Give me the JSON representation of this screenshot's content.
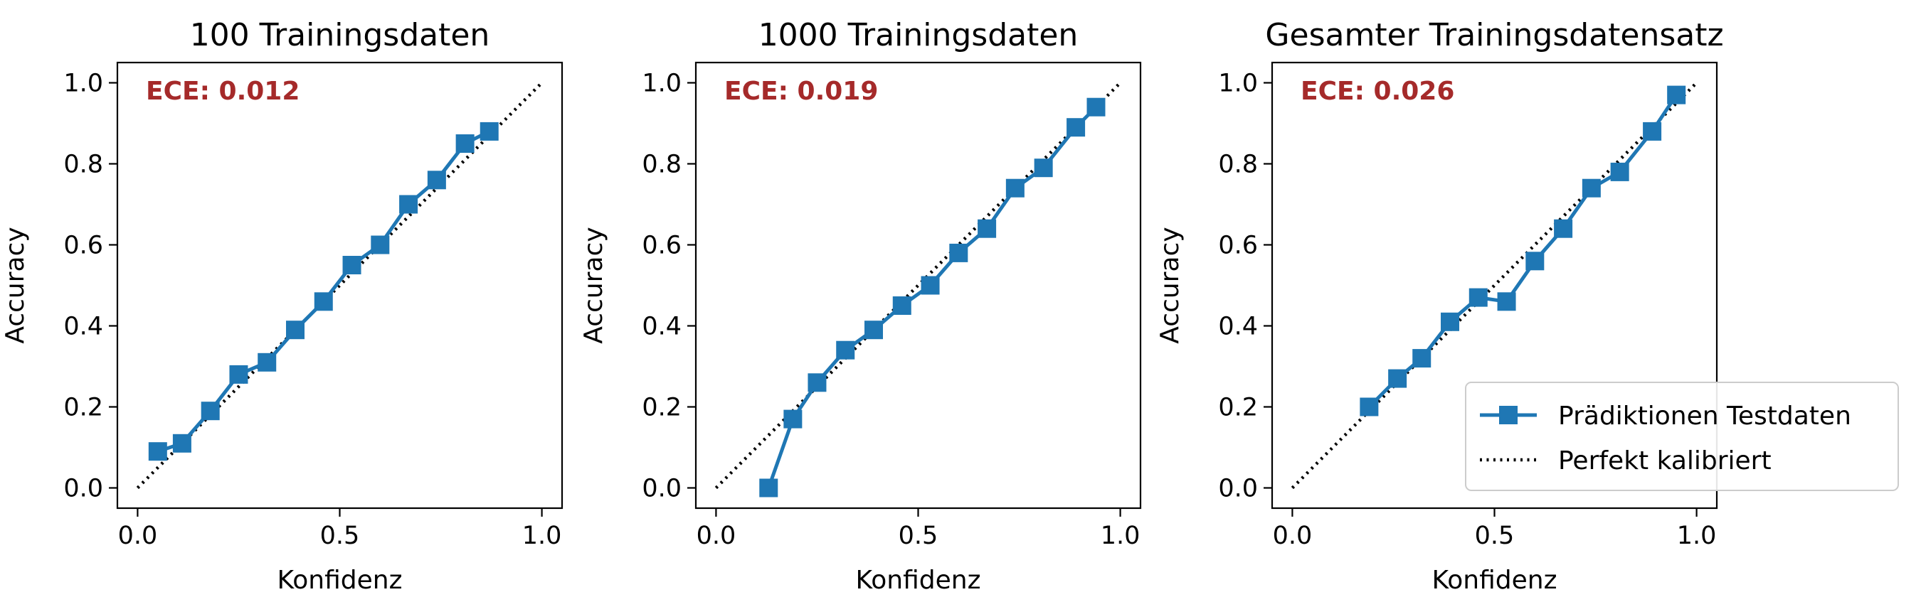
{
  "colors": {
    "series": "#1f77b4",
    "ece_text": "#a52a2a",
    "perfect_line": "#000000",
    "axes": "#000000",
    "legend_border": "#cccccc"
  },
  "legend": {
    "placement": "lower-right of third panel",
    "items": [
      "Prädiktionen Testdaten",
      "Perfekt kalibriert"
    ]
  },
  "chart_data": [
    {
      "type": "line",
      "title": "100 Trainingsdaten",
      "xlabel": "Konfidenz",
      "ylabel": "Accuracy",
      "xlim": [
        -0.05,
        1.05
      ],
      "ylim": [
        -0.05,
        1.05
      ],
      "xticks": [
        "0.0",
        "0.5",
        "1.0"
      ],
      "yticks": [
        "0.0",
        "0.2",
        "0.4",
        "0.6",
        "0.8",
        "1.0"
      ],
      "annotation": "ECE: 0.012",
      "grid": false,
      "series": [
        {
          "name": "Prädiktionen Testdaten",
          "marker": "square",
          "x": [
            0.05,
            0.11,
            0.18,
            0.25,
            0.32,
            0.39,
            0.46,
            0.53,
            0.6,
            0.67,
            0.74,
            0.81,
            0.87
          ],
          "y": [
            0.09,
            0.11,
            0.19,
            0.28,
            0.31,
            0.39,
            0.46,
            0.55,
            0.6,
            0.7,
            0.76,
            0.85,
            0.88
          ]
        },
        {
          "name": "Perfekt kalibriert",
          "style": "dotted",
          "x": [
            0.0,
            1.0
          ],
          "y": [
            0.0,
            1.0
          ]
        }
      ]
    },
    {
      "type": "line",
      "title": "1000 Trainingsdaten",
      "xlabel": "Konfidenz",
      "ylabel": "Accuracy",
      "xlim": [
        -0.05,
        1.05
      ],
      "ylim": [
        -0.05,
        1.05
      ],
      "xticks": [
        "0.0",
        "0.5",
        "1.0"
      ],
      "yticks": [
        "0.0",
        "0.2",
        "0.4",
        "0.6",
        "0.8",
        "1.0"
      ],
      "annotation": "ECE: 0.019",
      "grid": false,
      "series": [
        {
          "name": "Prädiktionen Testdaten",
          "marker": "square",
          "x": [
            0.13,
            0.19,
            0.25,
            0.32,
            0.39,
            0.46,
            0.53,
            0.6,
            0.67,
            0.74,
            0.81,
            0.89,
            0.94
          ],
          "y": [
            0.0,
            0.17,
            0.26,
            0.34,
            0.39,
            0.45,
            0.5,
            0.58,
            0.64,
            0.74,
            0.79,
            0.89,
            0.94
          ]
        },
        {
          "name": "Perfekt kalibriert",
          "style": "dotted",
          "x": [
            0.0,
            1.0
          ],
          "y": [
            0.0,
            1.0
          ]
        }
      ]
    },
    {
      "type": "line",
      "title": "Gesamter Trainingsdatensatz",
      "xlabel": "Konfidenz",
      "ylabel": "Accuracy",
      "xlim": [
        -0.05,
        1.05
      ],
      "ylim": [
        -0.05,
        1.05
      ],
      "xticks": [
        "0.0",
        "0.5",
        "1.0"
      ],
      "yticks": [
        "0.0",
        "0.2",
        "0.4",
        "0.6",
        "0.8",
        "1.0"
      ],
      "annotation": "ECE: 0.026",
      "grid": false,
      "series": [
        {
          "name": "Prädiktionen Testdaten",
          "marker": "square",
          "x": [
            0.19,
            0.26,
            0.32,
            0.39,
            0.46,
            0.53,
            0.6,
            0.67,
            0.74,
            0.81,
            0.89,
            0.95
          ],
          "y": [
            0.2,
            0.27,
            0.32,
            0.41,
            0.47,
            0.46,
            0.56,
            0.64,
            0.74,
            0.78,
            0.88,
            0.97
          ]
        },
        {
          "name": "Perfekt kalibriert",
          "style": "dotted",
          "x": [
            0.0,
            1.0
          ],
          "y": [
            0.0,
            1.0
          ]
        }
      ]
    }
  ]
}
